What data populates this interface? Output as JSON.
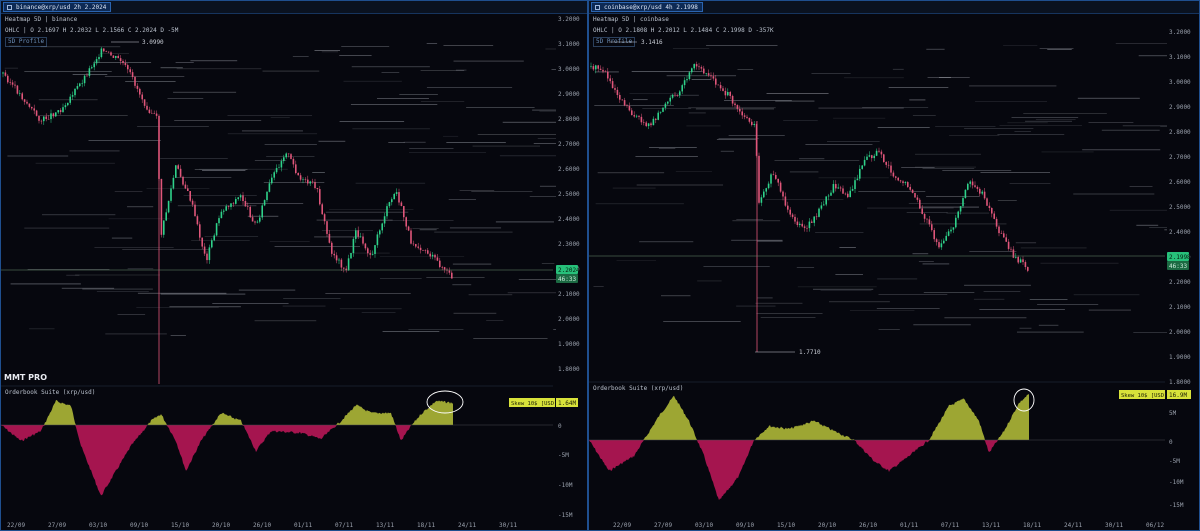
{
  "left": {
    "tab_title": "binance@xrp/usd 2h 2.2024",
    "heatmap_label": "Heatmap 5D | binance",
    "ohlc_text": "OHLC | O 2.1697 H 2.2032 L 2.1566 C 2.2024 D -5M",
    "badge": "5D Profile",
    "price_ticks": [
      "3.2000",
      "3.1000",
      "3.0000",
      "2.9000",
      "2.8000",
      "2.7000",
      "2.6000",
      "2.5000",
      "2.4000",
      "2.3000",
      "2.2000",
      "2.1000",
      "2.0000",
      "1.9000",
      "1.8000"
    ],
    "high_label": "3.0990",
    "price_tag": "2.2024",
    "countdown_tag": "46:33",
    "brand": "MMT PRO",
    "osc_label": "Orderbook Suite (xrp/usd)",
    "skew_tag": "Skew 10$ [USD]",
    "skew_value": "1.64M",
    "osc_ticks": [
      "0",
      "-5M",
      "-10M",
      "-15M"
    ],
    "date_ticks": [
      "22/09",
      "27/09",
      "03/10",
      "09/10",
      "15/10",
      "20/10",
      "26/10",
      "01/11",
      "07/11",
      "13/11",
      "18/11",
      "24/11",
      "30/11"
    ]
  },
  "right": {
    "tab_title": "coinbase@xrp/usd 4h 2.1998",
    "heatmap_label": "Heatmap 5D | coinbase",
    "ohlc_text": "OHLC | O 2.1808 H 2.2012 L 2.1484 C 2.1998 D -357K",
    "badge": "5D Profile",
    "price_ticks": [
      "3.2000",
      "3.1000",
      "3.0000",
      "2.9000",
      "2.8000",
      "2.7000",
      "2.6000",
      "2.5000",
      "2.4000",
      "2.3000",
      "2.2000",
      "2.1000",
      "2.0000",
      "1.9000",
      "1.8000"
    ],
    "high_label": "3.1416",
    "low_label": "1.7710",
    "price_tag": "2.1998",
    "countdown_tag": "46:33",
    "osc_label": "Orderbook Suite (xrp/usd)",
    "skew_tag": "Skew 10$ [USD]",
    "skew_value": "16.9M",
    "osc_ticks": [
      "5M",
      "0",
      "-5M",
      "-10M",
      "-15M"
    ],
    "date_ticks": [
      "22/09",
      "27/09",
      "03/10",
      "09/10",
      "15/10",
      "20/10",
      "26/10",
      "01/11",
      "07/11",
      "13/11",
      "18/11",
      "24/11",
      "30/11",
      "06/12"
    ]
  },
  "colors": {
    "up": "#2fd28a",
    "down": "#e0567a",
    "skew_pos": "#b8c23a",
    "skew_neg": "#c2185b",
    "price_tag": "#27c07a",
    "skew_tag": "#d8e23a",
    "frame": "#1f4f8f"
  },
  "icons": {
    "tab": "grid-icon",
    "annotation": "ellipse-highlight-icon"
  }
}
